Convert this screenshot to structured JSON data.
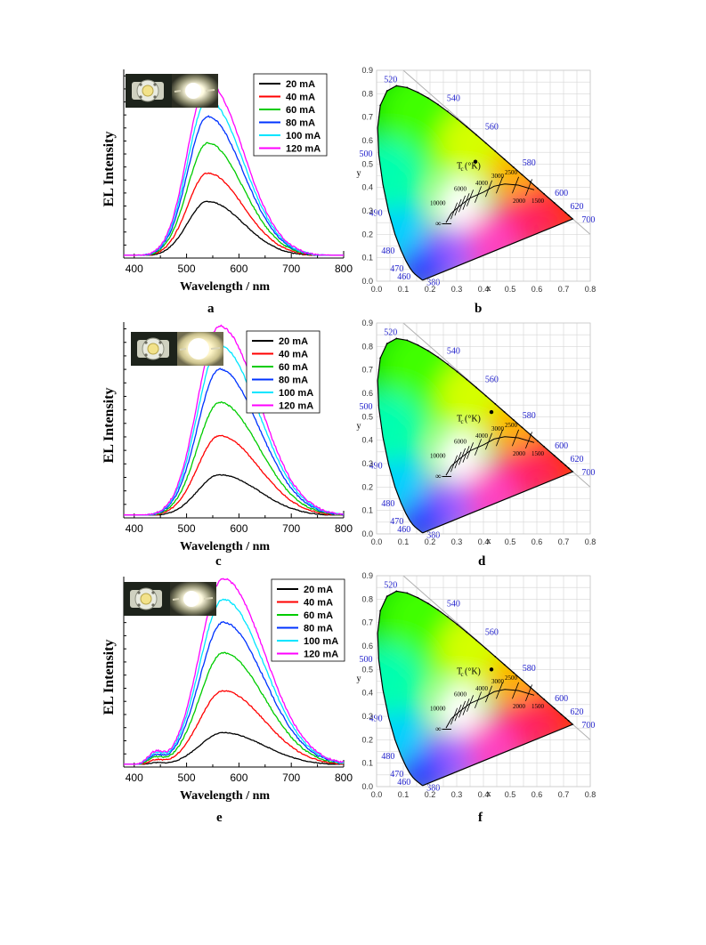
{
  "spectrum_axes": {
    "ylabel": "EL Intensity",
    "xlabel": "Wavelength / nm",
    "xticks": [
      "400",
      "500",
      "600",
      "700",
      "800"
    ]
  },
  "legend_labels": [
    "20 mA",
    "40 mA",
    "60 mA",
    "80 mA",
    "100 mA",
    "120 mA"
  ],
  "cie_axes": {
    "xlabel": "x",
    "ylabel": "y",
    "xticks": [
      "0.0",
      "0.1",
      "0.2",
      "0.3",
      "0.4",
      "0.5",
      "0.6",
      "0.7",
      "0.8"
    ],
    "yticks": [
      "0.0",
      "0.1",
      "0.2",
      "0.3",
      "0.4",
      "0.5",
      "0.6",
      "0.7",
      "0.8",
      "0.9"
    ],
    "wavelength_labels": [
      "520",
      "540",
      "560",
      "580",
      "600",
      "620",
      "700",
      "500",
      "490",
      "480",
      "470",
      "460",
      "380"
    ],
    "planckian_labels": [
      "T",
      "c",
      "(°K)",
      "10000",
      "6000",
      "4000",
      "3000",
      "2500",
      "2000",
      "1500",
      "∞"
    ]
  },
  "panels": [
    {
      "spectrum_letter": "a",
      "cie_letter": "b"
    },
    {
      "spectrum_letter": "c",
      "cie_letter": "d"
    },
    {
      "spectrum_letter": "e",
      "cie_letter": "f"
    }
  ],
  "colors": {
    "series": [
      "#000000",
      "#ff0000",
      "#00cc00",
      "#0033ff",
      "#00e5ff",
      "#ff00ff"
    ],
    "wavelength_label": "#2222cc"
  },
  "chart_data": [
    {
      "type": "line",
      "xlabel": "Wavelength / nm",
      "ylabel": "EL Intensity",
      "xlim": [
        380,
        800
      ],
      "peak_x": 540,
      "rise_width": 38,
      "fall_width": 68,
      "series": [
        {
          "name": "20 mA",
          "peak": 0.29
        },
        {
          "name": "40 mA",
          "peak": 0.44
        },
        {
          "name": "60 mA",
          "peak": 0.6
        },
        {
          "name": "80 mA",
          "peak": 0.74
        },
        {
          "name": "100 mA",
          "peak": 0.83
        },
        {
          "name": "120 mA",
          "peak": 0.92
        }
      ]
    },
    {
      "type": "scatter",
      "xlabel": "x",
      "ylabel": "y",
      "xlim": [
        0,
        0.8
      ],
      "ylim": [
        0,
        0.9
      ],
      "points": [
        {
          "x": 0.37,
          "y": 0.51
        }
      ]
    },
    {
      "type": "line",
      "xlabel": "Wavelength / nm",
      "ylabel": "EL Intensity",
      "xlim": [
        380,
        800
      ],
      "peak_x": 563,
      "rise_width": 42,
      "fall_width": 75,
      "series": [
        {
          "name": "20 mA",
          "peak": 0.21
        },
        {
          "name": "40 mA",
          "peak": 0.41
        },
        {
          "name": "60 mA",
          "peak": 0.58
        },
        {
          "name": "80 mA",
          "peak": 0.75
        },
        {
          "name": "100 mA",
          "peak": 0.87
        },
        {
          "name": "120 mA",
          "peak": 0.97
        }
      ]
    },
    {
      "type": "scatter",
      "xlabel": "x",
      "ylabel": "y",
      "xlim": [
        0,
        0.8
      ],
      "ylim": [
        0,
        0.9
      ],
      "points": [
        {
          "x": 0.43,
          "y": 0.52
        }
      ]
    },
    {
      "type": "line",
      "xlabel": "Wavelength / nm",
      "ylabel": "EL Intensity",
      "xlim": [
        380,
        800
      ],
      "peak_x": 570,
      "rise_width": 45,
      "fall_width": 78,
      "series": [
        {
          "name": "20 mA",
          "peak": 0.17
        },
        {
          "name": "40 mA",
          "peak": 0.39
        },
        {
          "name": "60 mA",
          "peak": 0.59
        },
        {
          "name": "80 mA",
          "peak": 0.75
        },
        {
          "name": "100 mA",
          "peak": 0.87
        },
        {
          "name": "120 mA",
          "peak": 0.98
        }
      ]
    },
    {
      "type": "scatter",
      "xlabel": "x",
      "ylabel": "y",
      "xlim": [
        0,
        0.8
      ],
      "ylim": [
        0,
        0.9
      ],
      "points": [
        {
          "x": 0.43,
          "y": 0.5
        }
      ]
    }
  ]
}
